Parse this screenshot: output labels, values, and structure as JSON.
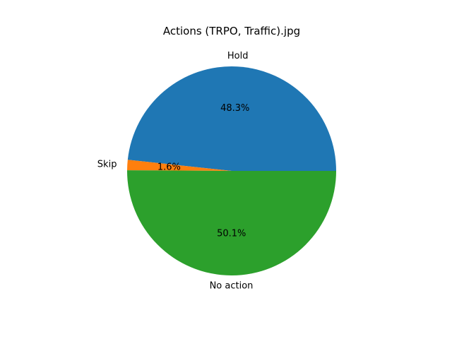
{
  "chart_data": {
    "type": "pie",
    "title": "Actions (TRPO, Traffic).jpg",
    "labels": [
      "Hold",
      "Skip",
      "No action"
    ],
    "values": [
      48.3,
      1.6,
      50.1
    ],
    "percent_labels": [
      "48.3%",
      "1.6%",
      "50.1%"
    ],
    "colors": [
      "#1f77b4",
      "#ff7f0e",
      "#2ca02c"
    ],
    "start_angle_deg": 0,
    "direction": "counterclockwise"
  }
}
